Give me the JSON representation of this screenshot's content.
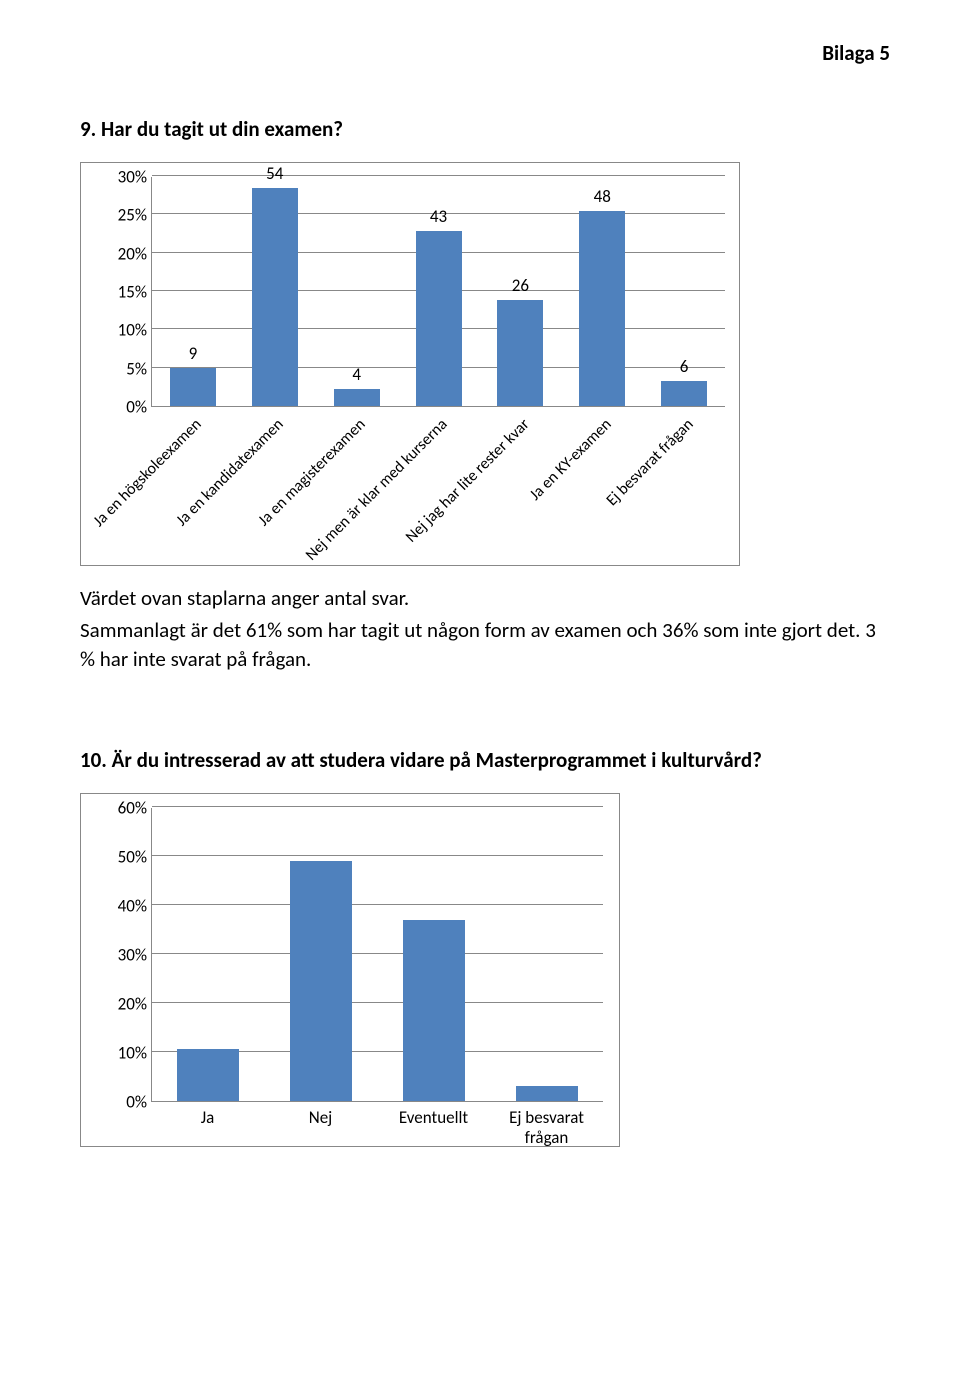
{
  "header": {
    "right": "Bilaga 5"
  },
  "q9": {
    "title": "9. Har du tagit ut din examen?",
    "chart": {
      "type": "bar",
      "ymax": 30,
      "ytick_step": 5,
      "yticks": [
        "0%",
        "5%",
        "10%",
        "15%",
        "20%",
        "25%",
        "30%"
      ],
      "bar_color": "#4f81bd",
      "grid_color": "#888888",
      "categories": [
        "Ja en högskoleexamen",
        "Ja en kandidatexamen",
        "Ja en magisterexamen",
        "Nej men är klar med kurserna",
        "Nej jag har lite rester kvar",
        "Ja en KY-examen",
        "Ej besvarat frågan"
      ],
      "value_labels": [
        "9",
        "54",
        "4",
        "43",
        "26",
        "48",
        "6"
      ],
      "percent_heights": [
        5,
        28.5,
        2.2,
        22.8,
        13.8,
        25.4,
        3.2
      ]
    },
    "para1": "Värdet ovan staplarna anger antal svar.",
    "para2": "Sammanlagt är det 61% som har tagit ut någon form av examen och 36% som inte gjort det. 3 % har inte svarat på frågan."
  },
  "q10": {
    "title": "10. Är du intresserad av att studera vidare på Masterprogrammet i kulturvård?",
    "chart": {
      "type": "bar",
      "ymax": 60,
      "ytick_step": 10,
      "yticks": [
        "0%",
        "10%",
        "20%",
        "30%",
        "40%",
        "50%",
        "60%"
      ],
      "bar_color": "#4f81bd",
      "grid_color": "#888888",
      "categories": [
        "Ja",
        "Nej",
        "Eventuellt",
        "Ej besvarat frågan"
      ],
      "percent_heights": [
        10.6,
        49,
        37,
        3
      ]
    }
  }
}
